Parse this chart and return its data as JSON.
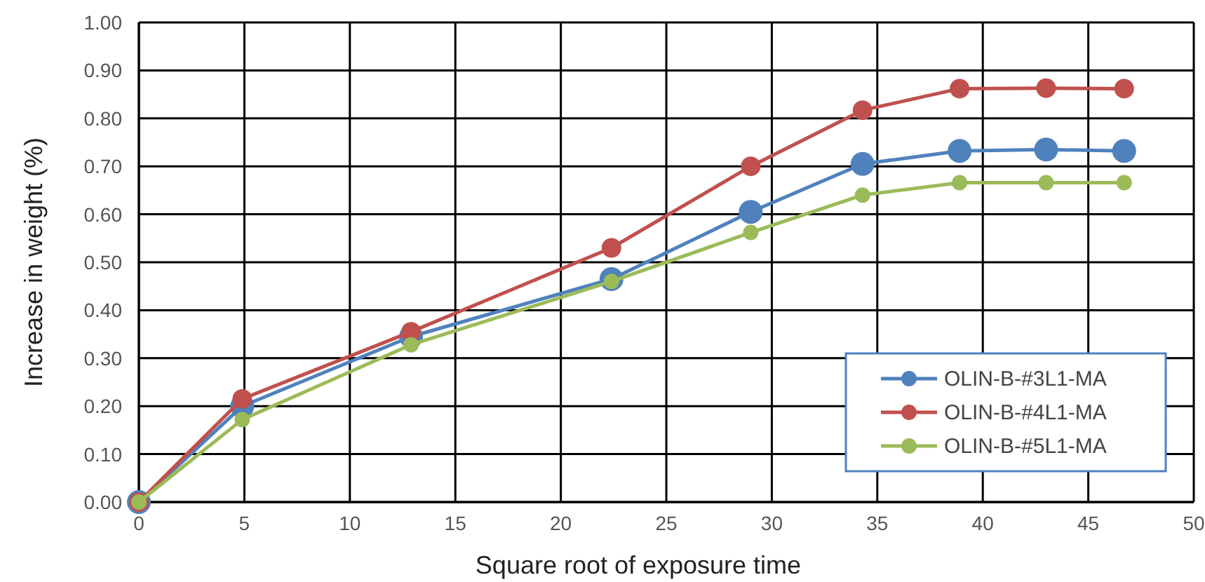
{
  "chart_data": {
    "type": "line",
    "xlabel": "Square root of exposure time",
    "ylabel": "Increase in weight (%)",
    "x": [
      0,
      4.9,
      12.9,
      22.4,
      29,
      34.3,
      38.9,
      43,
      46.7
    ],
    "series": [
      {
        "name": "OLIN-B-#3L1-MA",
        "color": "#4f81bd",
        "values": [
          0,
          0.2,
          0.345,
          0.465,
          0.605,
          0.705,
          0.732,
          0.735,
          0.732
        ]
      },
      {
        "name": "OLIN-B-#4L1-MA",
        "color": "#c0504d",
        "values": [
          0,
          0.215,
          0.355,
          0.53,
          0.7,
          0.817,
          0.862,
          0.863,
          0.862
        ]
      },
      {
        "name": "OLIN-B-#5L1-MA",
        "color": "#9bbb59",
        "values": [
          0,
          0.172,
          0.328,
          0.46,
          0.562,
          0.64,
          0.666,
          0.666,
          0.666
        ]
      }
    ],
    "xlim": [
      0,
      50
    ],
    "xticks": [
      0,
      5,
      10,
      15,
      20,
      25,
      30,
      35,
      40,
      45,
      50
    ],
    "ylim": [
      0,
      1
    ],
    "yticks": [
      {
        "value": 0,
        "label": "0.00"
      },
      {
        "value": 0.1,
        "label": "0.10"
      },
      {
        "value": 0.2,
        "label": "0.20"
      },
      {
        "value": 0.3,
        "label": "0.30"
      },
      {
        "value": 0.4,
        "label": "0.40"
      },
      {
        "value": 0.5,
        "label": "0.50"
      },
      {
        "value": 0.6,
        "label": "0.60"
      },
      {
        "value": 0.7,
        "label": "0.70"
      },
      {
        "value": 0.8,
        "label": "0.80"
      },
      {
        "value": 0.9,
        "label": "0.90"
      },
      {
        "value": 1,
        "label": "1.00"
      }
    ],
    "grid": true,
    "legend": "bottom right",
    "marker": "circle",
    "line_style": "solid"
  }
}
